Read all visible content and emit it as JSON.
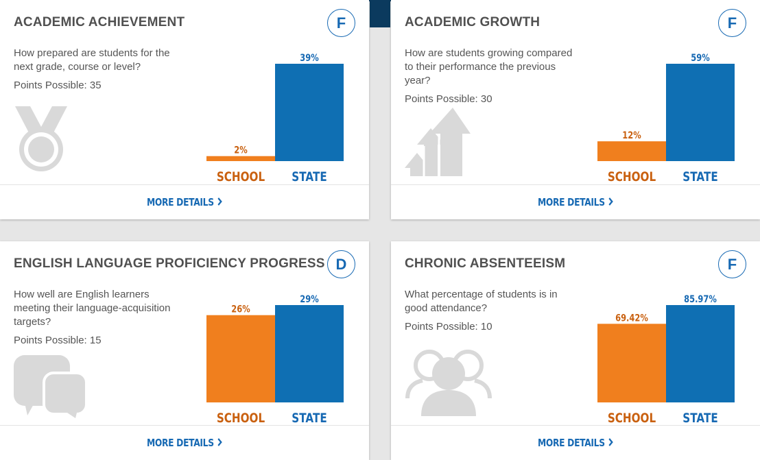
{
  "cards": [
    {
      "title": "ACADEMIC ACHIEVEMENT",
      "grade": "F",
      "question": "How prepared are students for the next grade, course or level?",
      "points": "Points Possible: 35",
      "icon": "medal-icon",
      "chart_data": {
        "type": "bar",
        "categories": [
          "SCHOOL",
          "STATE"
        ],
        "values": [
          2,
          39
        ],
        "labels": [
          "2%",
          "39%"
        ],
        "ylim": [
          0,
          39
        ]
      },
      "more": "MORE DETAILS"
    },
    {
      "title": "ACADEMIC GROWTH",
      "grade": "F",
      "question": "How are students growing compared to their performance the previous year?",
      "points": "Points Possible: 30",
      "icon": "growth-arrows-icon",
      "chart_data": {
        "type": "bar",
        "categories": [
          "SCHOOL",
          "STATE"
        ],
        "values": [
          12,
          59
        ],
        "labels": [
          "12%",
          "59%"
        ],
        "ylim": [
          0,
          59
        ]
      },
      "more": "MORE DETAILS"
    },
    {
      "title": "ENGLISH LANGUAGE PROFICIENCY PROGRESS",
      "grade": "D",
      "question": "How well are English learners meeting their language-acquisition targets?",
      "points": "Points Possible: 15",
      "icon": "speech-bubbles-icon",
      "chart_data": {
        "type": "bar",
        "categories": [
          "SCHOOL",
          "STATE"
        ],
        "values": [
          26,
          29
        ],
        "labels": [
          "26%",
          "29%"
        ],
        "ylim": [
          0,
          29
        ]
      },
      "more": "MORE DETAILS"
    },
    {
      "title": "CHRONIC ABSENTEEISM",
      "grade": "F",
      "question": "What percentage of students is in good attendance?",
      "points": "Points Possible: 10",
      "icon": "people-icon",
      "chart_data": {
        "type": "bar",
        "categories": [
          "SCHOOL",
          "STATE"
        ],
        "values": [
          69.42,
          85.97
        ],
        "labels": [
          "69.42%",
          "85.97%"
        ],
        "ylim": [
          0,
          85.97
        ]
      },
      "more": "MORE DETAILS"
    }
  ],
  "colors": {
    "school": "#f07f1e",
    "state": "#0f6fb3",
    "school_label": "#c9600f",
    "state_label": "#1769b3",
    "icon": "#d9d9d9"
  }
}
